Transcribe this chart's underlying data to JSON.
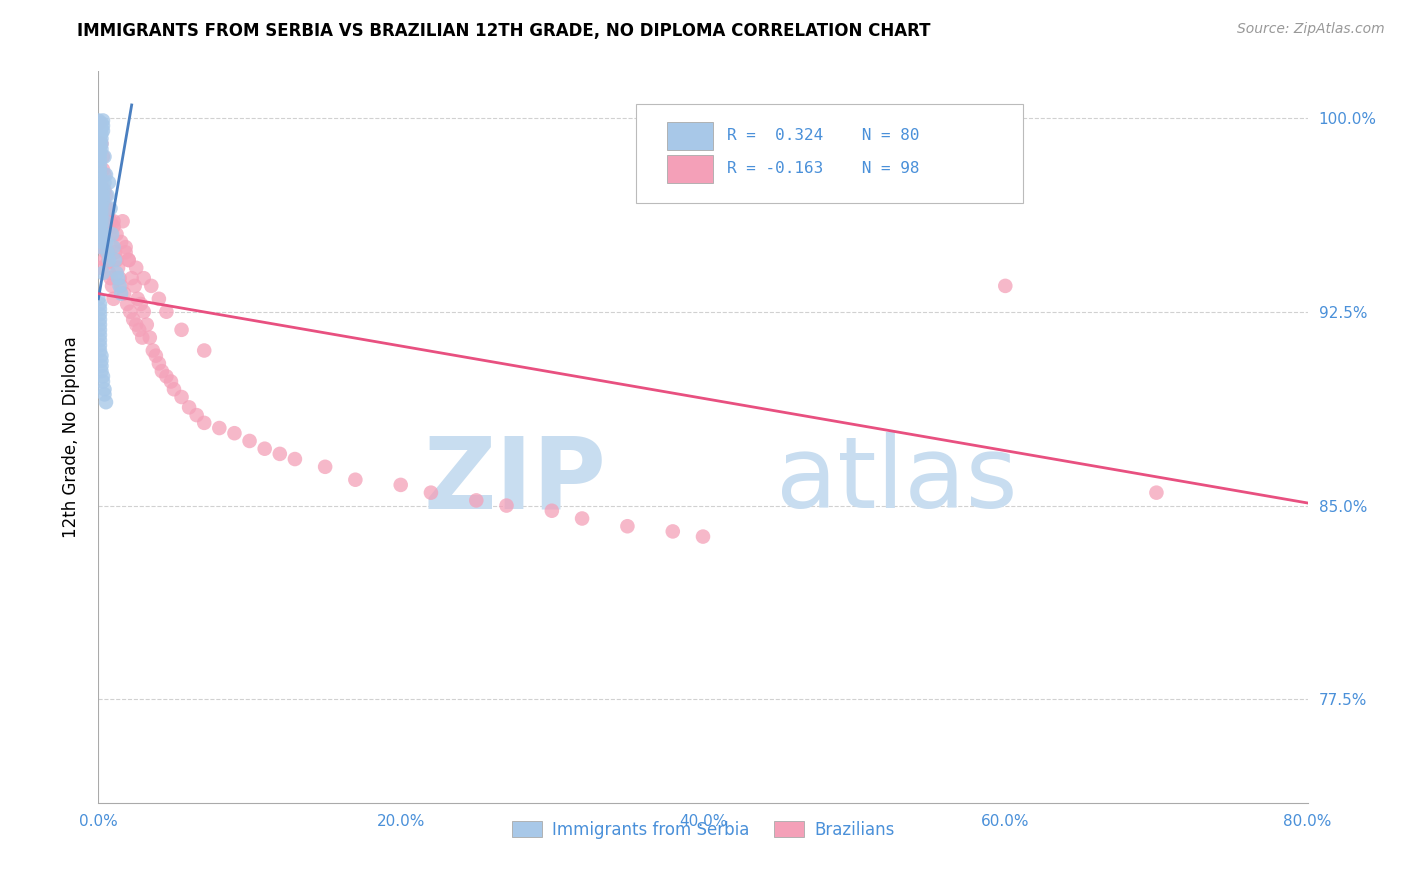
{
  "title": "IMMIGRANTS FROM SERBIA VS BRAZILIAN 12TH GRADE, NO DIPLOMA CORRELATION CHART",
  "source": "Source: ZipAtlas.com",
  "ylabel": "12th Grade, No Diploma",
  "x_tick_labels": [
    "0.0%",
    "20.0%",
    "40.0%",
    "60.0%",
    "80.0%"
  ],
  "y_tick_labels": [
    "77.5%",
    "85.0%",
    "92.5%",
    "100.0%"
  ],
  "x_tick_positions": [
    0.0,
    0.2,
    0.4,
    0.6,
    0.8
  ],
  "y_tick_positions": [
    0.775,
    0.85,
    0.925,
    1.0
  ],
  "x_min": 0.0,
  "x_max": 0.8,
  "y_min": 0.735,
  "y_max": 1.018,
  "serbia_color": "#a8c8e8",
  "brazil_color": "#f4a0b8",
  "serbia_line_color": "#4a7fc0",
  "brazil_line_color": "#e85080",
  "serbia_legend_color": "#a8c8e8",
  "brazil_legend_color": "#f4a0b8",
  "text_color": "#4a90d9",
  "serbia_line_x0": 0.0,
  "serbia_line_y0": 0.93,
  "serbia_line_x1": 0.022,
  "serbia_line_y1": 1.005,
  "brazil_line_x0": 0.0,
  "brazil_line_y0": 0.932,
  "brazil_line_x1": 0.8,
  "brazil_line_y1": 0.851,
  "serbia_scatter_x": [
    0.0,
    0.001,
    0.001,
    0.001,
    0.001,
    0.001,
    0.001,
    0.001,
    0.001,
    0.001,
    0.001,
    0.001,
    0.001,
    0.001,
    0.001,
    0.001,
    0.001,
    0.001,
    0.001,
    0.001,
    0.002,
    0.002,
    0.002,
    0.002,
    0.002,
    0.002,
    0.002,
    0.002,
    0.002,
    0.002,
    0.002,
    0.002,
    0.002,
    0.002,
    0.002,
    0.003,
    0.003,
    0.003,
    0.003,
    0.003,
    0.003,
    0.003,
    0.003,
    0.004,
    0.004,
    0.004,
    0.005,
    0.005,
    0.006,
    0.006,
    0.007,
    0.007,
    0.008,
    0.009,
    0.01,
    0.011,
    0.012,
    0.013,
    0.014,
    0.015,
    0.0,
    0.001,
    0.001,
    0.001,
    0.001,
    0.001,
    0.001,
    0.001,
    0.001,
    0.001,
    0.001,
    0.002,
    0.002,
    0.002,
    0.002,
    0.003,
    0.003,
    0.004,
    0.004,
    0.005
  ],
  "serbia_scatter_y": [
    0.999,
    0.997,
    0.994,
    0.992,
    0.99,
    0.988,
    0.986,
    0.984,
    0.982,
    0.98,
    0.978,
    0.976,
    0.974,
    0.972,
    0.97,
    0.968,
    0.966,
    0.964,
    0.962,
    0.96,
    0.998,
    0.996,
    0.994,
    0.992,
    0.99,
    0.988,
    0.966,
    0.964,
    0.962,
    0.96,
    0.958,
    0.956,
    0.954,
    0.952,
    0.95,
    0.999,
    0.997,
    0.995,
    0.972,
    0.97,
    0.968,
    0.955,
    0.94,
    0.985,
    0.975,
    0.96,
    0.978,
    0.952,
    0.97,
    0.948,
    0.975,
    0.945,
    0.965,
    0.955,
    0.95,
    0.945,
    0.94,
    0.938,
    0.935,
    0.932,
    0.93,
    0.928,
    0.926,
    0.924,
    0.922,
    0.92,
    0.918,
    0.916,
    0.914,
    0.912,
    0.91,
    0.908,
    0.906,
    0.904,
    0.902,
    0.9,
    0.898,
    0.895,
    0.893,
    0.89
  ],
  "brazil_scatter_x": [
    0.0,
    0.001,
    0.001,
    0.001,
    0.001,
    0.001,
    0.002,
    0.002,
    0.002,
    0.002,
    0.003,
    0.003,
    0.003,
    0.004,
    0.004,
    0.004,
    0.005,
    0.005,
    0.006,
    0.006,
    0.007,
    0.007,
    0.008,
    0.008,
    0.009,
    0.009,
    0.01,
    0.01,
    0.011,
    0.012,
    0.013,
    0.014,
    0.015,
    0.016,
    0.017,
    0.018,
    0.019,
    0.02,
    0.021,
    0.022,
    0.023,
    0.024,
    0.025,
    0.026,
    0.027,
    0.028,
    0.029,
    0.03,
    0.032,
    0.034,
    0.036,
    0.038,
    0.04,
    0.042,
    0.045,
    0.048,
    0.05,
    0.055,
    0.06,
    0.065,
    0.07,
    0.08,
    0.09,
    0.1,
    0.11,
    0.12,
    0.13,
    0.15,
    0.17,
    0.2,
    0.22,
    0.25,
    0.27,
    0.3,
    0.32,
    0.35,
    0.38,
    0.4,
    0.6,
    0.7,
    0.002,
    0.003,
    0.004,
    0.005,
    0.006,
    0.008,
    0.01,
    0.012,
    0.015,
    0.018,
    0.02,
    0.025,
    0.03,
    0.035,
    0.04,
    0.045,
    0.055,
    0.07
  ],
  "brazil_scatter_y": [
    0.965,
    0.998,
    0.99,
    0.98,
    0.972,
    0.962,
    0.975,
    0.96,
    0.95,
    0.942,
    0.98,
    0.968,
    0.955,
    0.972,
    0.958,
    0.945,
    0.965,
    0.948,
    0.962,
    0.944,
    0.958,
    0.94,
    0.955,
    0.938,
    0.95,
    0.935,
    0.96,
    0.93,
    0.948,
    0.945,
    0.942,
    0.938,
    0.935,
    0.96,
    0.932,
    0.95,
    0.928,
    0.945,
    0.925,
    0.938,
    0.922,
    0.935,
    0.92,
    0.93,
    0.918,
    0.928,
    0.915,
    0.925,
    0.92,
    0.915,
    0.91,
    0.908,
    0.905,
    0.902,
    0.9,
    0.898,
    0.895,
    0.892,
    0.888,
    0.885,
    0.882,
    0.88,
    0.878,
    0.875,
    0.872,
    0.87,
    0.868,
    0.865,
    0.86,
    0.858,
    0.855,
    0.852,
    0.85,
    0.848,
    0.845,
    0.842,
    0.84,
    0.838,
    0.935,
    0.855,
    0.99,
    0.985,
    0.978,
    0.97,
    0.965,
    0.96,
    0.958,
    0.955,
    0.952,
    0.948,
    0.945,
    0.942,
    0.938,
    0.935,
    0.93,
    0.925,
    0.918,
    0.91
  ]
}
